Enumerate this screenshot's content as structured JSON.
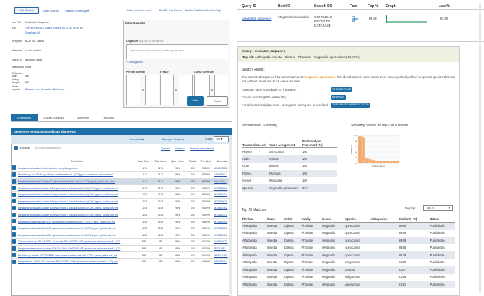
{
  "blast": {
    "edit_search": "Edit Search",
    "save_search": "Save Search",
    "search_summary": "Search Summary",
    "how_to_read": "How to read this report?",
    "help_videos": "BLAST Help Videos",
    "back_traditional": "Back to Traditional Results Page",
    "job": [
      {
        "k": "Job Title",
        "v": "Nucleotide Sequence"
      },
      {
        "k": "RID",
        "v": "7WPNCHMZ013  Search expires on 03-30 00:44 am"
      },
      {
        "k": "",
        "v": "Download All"
      },
      {
        "k": "Program",
        "v": "BLASTN  Citation"
      },
      {
        "k": "Database",
        "v": "nt  See details"
      },
      {
        "k": "Query ID",
        "v": "lcl|Query_53697"
      },
      {
        "k": "Description",
        "v": "None"
      },
      {
        "k": "Molecule type",
        "v": "dna"
      },
      {
        "k": "Query Length",
        "v": "681"
      },
      {
        "k": "Other reports",
        "v": "Distance tree of results  MSA viewer"
      }
    ],
    "filter": {
      "title": "Filter Results",
      "organism_label": "Organism",
      "organism_hint": "only top 20 will appear",
      "organism_placeholder": "Type common name, binomial, taxid or group name",
      "add_organism": "+ Add organism",
      "percent_identity": "Percent Identity",
      "e_value": "E value",
      "query_coverage": "Query Coverage",
      "to": "to",
      "filter_btn": "Filter",
      "reset_btn": "Reset"
    },
    "tabs": [
      "Descriptions",
      "Graphic Summary",
      "Alignments",
      "Taxonomy"
    ],
    "results_title": "Sequences producing significant alignments",
    "download": "Download",
    "manage_columns": "Manage columns",
    "show_label": "Show",
    "show_value": "100",
    "select_all": "select all",
    "selected": "100 sequences selected",
    "genbank": "GenBank",
    "graphics": "Graphics",
    "distance_tree": "Distance tree of results",
    "columns": [
      "Description",
      "Max Score",
      "Total Score",
      "Query Cover",
      "E value",
      "Per. Ident",
      "Accession"
    ],
    "rows": [
      {
        "d": "Megaselia spiracularis mitochondrion, complete genome",
        "m": "1171",
        "t": "1171",
        "q": "98%",
        "e": "0.0",
        "p": "98.30%",
        "a": "MN403340.1",
        "sel": false
      },
      {
        "d": "Phoridae sp. cc 6T745 cytochrome oxidase subunit I (COI) gene, partial cds; mitochondrial",
        "m": "1171",
        "t": "1171",
        "q": "98%",
        "e": "0.0",
        "p": "98.30%",
        "a": "KX356386.1",
        "sel": false
      },
      {
        "d": "Megaselia spiracularis isolate 53 cytochrome oxidase subunit I (COI) gene, partial cds; mitoc",
        "m": "1171",
        "t": "1171",
        "q": "98%",
        "e": "0.0",
        "p": "98.30%",
        "a": "JQ941751.1",
        "sel": true
      },
      {
        "d": "Megaselia spiracularis isolate 5o2 cytochrome c oxidase subunit I (COX1) gene, partial cds; mit",
        "m": "1171",
        "t": "1171",
        "q": "98%",
        "e": "0.0",
        "p": "98.30%",
        "a": "MT398285.1",
        "sel": false
      },
      {
        "d": "Megaselia spiracularis isolate 5o4 cytochrome c oxidase subunit I (COX1) gene, partial cds; mit",
        "m": "1153",
        "t": "1153",
        "q": "98%",
        "e": "0.0",
        "p": "98.02%",
        "a": "MT398281.1",
        "sel": false
      },
      {
        "d": "Megaselia spiracularis isolate 5o5 cytochrome c oxidase subunit I (COX1) gene, partial cds; mit",
        "m": "1153",
        "t": "1153",
        "q": "98%",
        "e": "0.0",
        "p": "98.02%",
        "a": "MT398280.1",
        "sel": false
      },
      {
        "d": "Megaselia spiracularis isolate 5o8 cytochrome c oxidase subunit I (COX1) gene, partial cds; mit",
        "m": "1153",
        "t": "1153",
        "q": "98%",
        "e": "0.0",
        "p": "98.02%",
        "a": "MT398278.1",
        "sel": false
      },
      {
        "d": "Megaselia spiracularis isolate 5o9 cytochrome c oxidase subunit I (COX1) gene, partial cds; mit",
        "m": "1153",
        "t": "1153",
        "q": "98%",
        "e": "0.0",
        "p": "98.02%",
        "a": "MT398287.1",
        "sel": false
      },
      {
        "d": "Megaselia scalaris isolate 5o11 cytochrome c oxidase subunit I (COX1) gene, partial cds; mit",
        "m": "1153",
        "t": "1153",
        "q": "98%",
        "e": "0.0",
        "p": "98.02%",
        "a": "MT398283.1",
        "sel": false
      },
      {
        "d": "Megaselia scalaris isolate 5o16 cytochrome c oxidase subunit I (COX1) gene, partial cds; mit",
        "m": "1153",
        "t": "1153",
        "q": "98%",
        "e": "0.0",
        "p": "98.02%",
        "a": "MT398282.1",
        "sel": false
      },
      {
        "d": "Megaselia scalaris isolate 5o26 cytochrome c oxidase subunit I (COX1) gene, partial cds; mit",
        "m": "1153",
        "t": "1153",
        "q": "98%",
        "e": "0.0",
        "p": "98.02%",
        "a": "MT398281.1",
        "sel": false
      },
      {
        "d": "Chironomidae sp. BSUAR1787-13 voucher BIOUG06587-C07 cytochrome oxidase subunit 1 (CO",
        "m": "881",
        "t": "881",
        "q": "98%",
        "e": "0.0",
        "p": "90.74%",
        "a": "KM670037.1",
        "sel": false
      },
      {
        "d": "Megaselia wiegmanae voucher BIOUG<CAN>:10660SP-1468 cytochrome oxidase subunit 1 (CO",
        "m": "881",
        "t": "881",
        "q": "98%",
        "e": "0.0",
        "p": "90.74%",
        "a": "JF971349.1",
        "sel": false
      },
      {
        "d": "Phoridae sp. isolate UGC0806R39 cytochrome oxidase subunit I (COX1) gene, partial cds; mit",
        "m": "856",
        "t": "856",
        "q": "98%",
        "e": "0.0",
        "p": "90.47%",
        "a": "MN403418.1",
        "sel": false
      },
      {
        "d": "Megaselia sp. BOLD-2016 voucher BIOUG07891-E06 cytochrome oxidase subunit 1 (COI) gen",
        "m": "856",
        "t": "856",
        "q": "98%",
        "e": "0.0",
        "p": "90.56%",
        "a": "KR568397.1",
        "sel": false
      }
    ]
  },
  "bold": {
    "headers": [
      "Query ID",
      "Best ID",
      "Search DB",
      "Tree",
      "Top %",
      "Graph",
      "Low %"
    ],
    "row": {
      "query_id": "unlabeled_sequence",
      "best_id": "Megaselia spiracularis",
      "search_db": "COI PUBLIC RECORDS DATABASE",
      "top": "99.69",
      "low": "90.85"
    },
    "query_line": "Query: unlabeled_sequence",
    "top_hit_label": "Top Hit:",
    "top_hit_rest": "Arthropoda  Insecta - Diptera - Phoridae - ",
    "top_hit_species": "Megaselia spiracularis",
    "top_hit_pct": "(99.69%)",
    "search_result": "Search Result:",
    "para1_a": "The submitted sequence has been matched to: ",
    "para1_sp": "Megaselia spiracularis",
    "para1_b": ". This identification is solid unless there is a very closely allied congeneric species that has not yet been analyzed. Such cases are rare.",
    "species_page_text": "A species page is available for this taxon:",
    "species_page_btn": "SPECIES PAGE",
    "bin_text": "Closest matching BIN (within 3%):",
    "bin_btn": "BIN PAGE",
    "tree_text": "For a hierarchical placement - a neighbor-joining tree is provided:",
    "tree_btn": "TREE BASED IDENTIFICATION",
    "id_summary": "Identification Summary",
    "tax_headers": [
      "Taxonomic Level",
      "Taxon Assignment",
      "Probability of Placement (%)"
    ],
    "tax_rows": [
      {
        "level": "Phylum",
        "taxon": "Arthropoda",
        "prob": "100"
      },
      {
        "level": "Class",
        "taxon": "Insecta",
        "prob": "100"
      },
      {
        "level": "Order",
        "taxon": "Diptera",
        "prob": "100"
      },
      {
        "level": "Family",
        "taxon": "Phoridae",
        "prob": "100"
      },
      {
        "level": "Genus",
        "taxon": "Megaselia",
        "prob": "100"
      },
      {
        "level": "Species",
        "taxon": "Megaselia spiracularis",
        "prob": "99.7"
      }
    ],
    "similarity_title": "Similarity Scores of Top 100 Matches",
    "top20_title": "Top 20 Matches",
    "display_label": "Display:",
    "display_value": "Top 20",
    "t20_headers": [
      "Phylum",
      "Class",
      "Order",
      "Family",
      "Genus",
      "Species",
      "Subspecies",
      "Similarity (%)",
      "Status"
    ],
    "t20_rows": [
      {
        "phylum": "Arthropoda",
        "class": "Insecta",
        "order": "Diptera",
        "family": "Phoridae",
        "genus": "Megaselia",
        "species": "spiracularis",
        "sim": "99.69",
        "status": "Published"
      },
      {
        "phylum": "Arthropoda",
        "class": "Insecta",
        "order": "Diptera",
        "family": "Phoridae",
        "genus": "Megaselia",
        "species": "spiracularis",
        "sim": "99.69",
        "status": "Published"
      },
      {
        "phylum": "Arthropoda",
        "class": "Insecta",
        "order": "Diptera",
        "family": "Phoridae",
        "genus": "Megaselia",
        "species": "spiracularis",
        "sim": "99.69",
        "status": "Published"
      },
      {
        "phylum": "Arthropoda",
        "class": "Insecta",
        "order": "Diptera",
        "family": "Phoridae",
        "genus": "Megaselia",
        "species": "spiracularis",
        "sim": "99.65",
        "status": "Published"
      },
      {
        "phylum": "Arthropoda",
        "class": "Insecta",
        "order": "Diptera",
        "family": "Phoridae",
        "genus": "Megaselia",
        "species": "spiracularis",
        "sim": "99.38",
        "status": "Published"
      },
      {
        "phylum": "Arthropoda",
        "class": "Insecta",
        "order": "Diptera",
        "family": "Phoridae",
        "genus": "Megaselia",
        "species": "wiegmanae",
        "sim": "91.99",
        "status": "Published"
      },
      {
        "phylum": "Arthropoda",
        "class": "Insecta",
        "order": "Diptera",
        "family": "Phoridae",
        "genus": "Megaselia",
        "species": "arcticae",
        "sim": "91.67",
        "status": "Published"
      },
      {
        "phylum": "Arthropoda",
        "class": "Insecta",
        "order": "Diptera",
        "family": "Phoridae",
        "genus": "Megaselia",
        "species": "wiegmanae",
        "sim": "91.65",
        "status": "Published"
      },
      {
        "phylum": "Arthropoda",
        "class": "Insecta",
        "order": "Diptera",
        "family": "Phoridae",
        "genus": "Megaselia",
        "species": "wiegmanae",
        "sim": "91.51",
        "status": "Published"
      }
    ]
  },
  "chart_data": {
    "type": "bar",
    "title": "",
    "xlabel": "Ranked Matches",
    "ylabel": "Similarity (%)",
    "ylim": [
      90,
      100
    ],
    "values": [
      99.69,
      99.69,
      99.69,
      99.65,
      99.38,
      91.99,
      91.67,
      91.65,
      91.51,
      91.4,
      91.3,
      91.2,
      91.1,
      91.0,
      90.95,
      90.9,
      90.9,
      90.88,
      90.87,
      90.86,
      90.86,
      90.85,
      90.85,
      90.85,
      90.85,
      90.85,
      90.85,
      90.85,
      90.85,
      90.85
    ]
  },
  "colors": {
    "nav_blue": "#1c6ea4",
    "link": "#2255aa",
    "hit_orange": "#e87a00",
    "bar_orange": "#f2a86b",
    "graph_green": "#2e9c6a",
    "header_green_bg": "#eef1e0"
  }
}
